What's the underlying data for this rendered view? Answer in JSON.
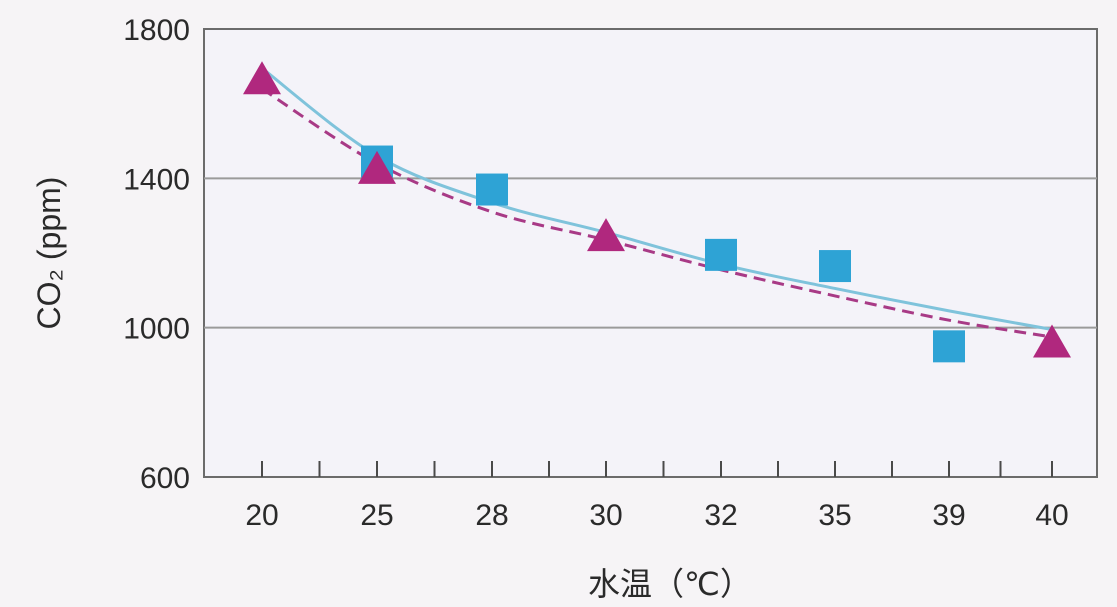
{
  "chart_data": {
    "type": "scatter",
    "xlabel": "水温（℃）",
    "ylabel": "CO₂ (ppm)",
    "categories": [
      "20",
      "25",
      "28",
      "30",
      "32",
      "35",
      "39",
      "40"
    ],
    "ylim": [
      600,
      1800
    ],
    "yticks": [
      "600",
      "1000",
      "1400",
      "1800"
    ],
    "grid": true,
    "series": [
      {
        "marker": "triangle",
        "color": "#b0287e",
        "points": [
          {
            "x": "20",
            "y": 1660
          },
          {
            "x": "25",
            "y": 1420
          },
          {
            "x": "30",
            "y": 1240
          },
          {
            "x": "40",
            "y": 955
          }
        ],
        "trend": {
          "style": "dashed",
          "color": "#a83a86",
          "values": [
            1640,
            1440,
            1310,
            1235,
            1155,
            1085,
            1020,
            975
          ]
        }
      },
      {
        "marker": "square",
        "color": "#2ea3d5",
        "points": [
          {
            "x": "25",
            "y": 1445
          },
          {
            "x": "28",
            "y": 1370
          },
          {
            "x": "32",
            "y": 1195
          },
          {
            "x": "35",
            "y": 1165
          },
          {
            "x": "39",
            "y": 950
          }
        ],
        "trend": {
          "style": "solid",
          "color": "#7fc3db",
          "values": [
            1695,
            1460,
            1335,
            1255,
            1170,
            1105,
            1045,
            995
          ]
        }
      }
    ]
  }
}
